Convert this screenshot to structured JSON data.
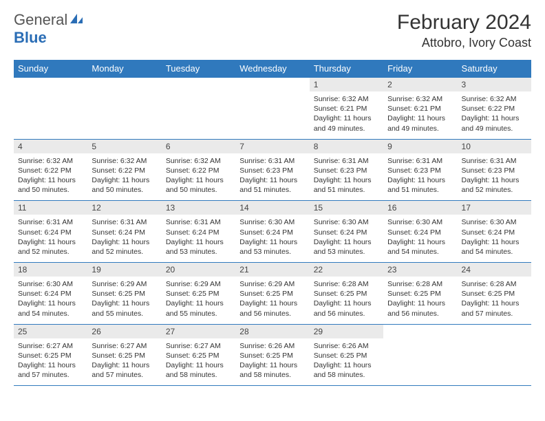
{
  "logo": {
    "word1": "General",
    "word2": "Blue"
  },
  "header": {
    "title": "February 2024",
    "location": "Attobro, Ivory Coast"
  },
  "colors": {
    "header_bg": "#3079bd",
    "header_text": "#ffffff",
    "daynum_bg": "#eaeaea",
    "row_border": "#3079bd",
    "logo_gray": "#555555",
    "logo_blue": "#2a6db5"
  },
  "columns": [
    "Sunday",
    "Monday",
    "Tuesday",
    "Wednesday",
    "Thursday",
    "Friday",
    "Saturday"
  ],
  "weeks": [
    [
      {
        "blank": true
      },
      {
        "blank": true
      },
      {
        "blank": true
      },
      {
        "blank": true
      },
      {
        "n": "1",
        "sunrise": "6:32 AM",
        "sunset": "6:21 PM",
        "dl_h": 11,
        "dl_m": 49
      },
      {
        "n": "2",
        "sunrise": "6:32 AM",
        "sunset": "6:21 PM",
        "dl_h": 11,
        "dl_m": 49
      },
      {
        "n": "3",
        "sunrise": "6:32 AM",
        "sunset": "6:22 PM",
        "dl_h": 11,
        "dl_m": 49
      }
    ],
    [
      {
        "n": "4",
        "sunrise": "6:32 AM",
        "sunset": "6:22 PM",
        "dl_h": 11,
        "dl_m": 50
      },
      {
        "n": "5",
        "sunrise": "6:32 AM",
        "sunset": "6:22 PM",
        "dl_h": 11,
        "dl_m": 50
      },
      {
        "n": "6",
        "sunrise": "6:32 AM",
        "sunset": "6:22 PM",
        "dl_h": 11,
        "dl_m": 50
      },
      {
        "n": "7",
        "sunrise": "6:31 AM",
        "sunset": "6:23 PM",
        "dl_h": 11,
        "dl_m": 51
      },
      {
        "n": "8",
        "sunrise": "6:31 AM",
        "sunset": "6:23 PM",
        "dl_h": 11,
        "dl_m": 51
      },
      {
        "n": "9",
        "sunrise": "6:31 AM",
        "sunset": "6:23 PM",
        "dl_h": 11,
        "dl_m": 51
      },
      {
        "n": "10",
        "sunrise": "6:31 AM",
        "sunset": "6:23 PM",
        "dl_h": 11,
        "dl_m": 52
      }
    ],
    [
      {
        "n": "11",
        "sunrise": "6:31 AM",
        "sunset": "6:24 PM",
        "dl_h": 11,
        "dl_m": 52
      },
      {
        "n": "12",
        "sunrise": "6:31 AM",
        "sunset": "6:24 PM",
        "dl_h": 11,
        "dl_m": 52
      },
      {
        "n": "13",
        "sunrise": "6:31 AM",
        "sunset": "6:24 PM",
        "dl_h": 11,
        "dl_m": 53
      },
      {
        "n": "14",
        "sunrise": "6:30 AM",
        "sunset": "6:24 PM",
        "dl_h": 11,
        "dl_m": 53
      },
      {
        "n": "15",
        "sunrise": "6:30 AM",
        "sunset": "6:24 PM",
        "dl_h": 11,
        "dl_m": 53
      },
      {
        "n": "16",
        "sunrise": "6:30 AM",
        "sunset": "6:24 PM",
        "dl_h": 11,
        "dl_m": 54
      },
      {
        "n": "17",
        "sunrise": "6:30 AM",
        "sunset": "6:24 PM",
        "dl_h": 11,
        "dl_m": 54
      }
    ],
    [
      {
        "n": "18",
        "sunrise": "6:30 AM",
        "sunset": "6:24 PM",
        "dl_h": 11,
        "dl_m": 54
      },
      {
        "n": "19",
        "sunrise": "6:29 AM",
        "sunset": "6:25 PM",
        "dl_h": 11,
        "dl_m": 55
      },
      {
        "n": "20",
        "sunrise": "6:29 AM",
        "sunset": "6:25 PM",
        "dl_h": 11,
        "dl_m": 55
      },
      {
        "n": "21",
        "sunrise": "6:29 AM",
        "sunset": "6:25 PM",
        "dl_h": 11,
        "dl_m": 56
      },
      {
        "n": "22",
        "sunrise": "6:28 AM",
        "sunset": "6:25 PM",
        "dl_h": 11,
        "dl_m": 56
      },
      {
        "n": "23",
        "sunrise": "6:28 AM",
        "sunset": "6:25 PM",
        "dl_h": 11,
        "dl_m": 56
      },
      {
        "n": "24",
        "sunrise": "6:28 AM",
        "sunset": "6:25 PM",
        "dl_h": 11,
        "dl_m": 57
      }
    ],
    [
      {
        "n": "25",
        "sunrise": "6:27 AM",
        "sunset": "6:25 PM",
        "dl_h": 11,
        "dl_m": 57
      },
      {
        "n": "26",
        "sunrise": "6:27 AM",
        "sunset": "6:25 PM",
        "dl_h": 11,
        "dl_m": 57
      },
      {
        "n": "27",
        "sunrise": "6:27 AM",
        "sunset": "6:25 PM",
        "dl_h": 11,
        "dl_m": 58
      },
      {
        "n": "28",
        "sunrise": "6:26 AM",
        "sunset": "6:25 PM",
        "dl_h": 11,
        "dl_m": 58
      },
      {
        "n": "29",
        "sunrise": "6:26 AM",
        "sunset": "6:25 PM",
        "dl_h": 11,
        "dl_m": 58
      },
      {
        "blank": true
      },
      {
        "blank": true
      }
    ]
  ],
  "labels": {
    "sunrise": "Sunrise:",
    "sunset": "Sunset:",
    "daylight": "Daylight:",
    "hours": "hours",
    "and": "and",
    "minutes": "minutes."
  },
  "typography": {
    "title_fontsize": 30,
    "location_fontsize": 18,
    "th_fontsize": 13,
    "cell_fontsize": 10.5
  }
}
